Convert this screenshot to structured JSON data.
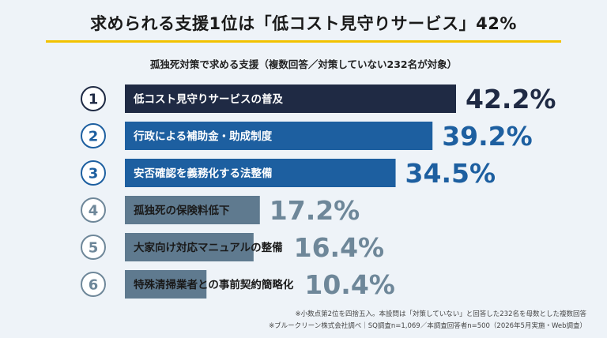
{
  "title": "求められる支援1位は「低コスト見守りサービス」42%",
  "subtitle": "孤独死対策で求める支援（複数回答／対策していない232名が対象）",
  "footnotes": [
    "※小数点第2位を四捨五入。本設問は「対策していない」と回答した232名を母数とした複数回答",
    "※ブルークリーン株式会社調べ｜SQ調査n=1,069／本調査回答者n=500（2026年5月実施・Web調査）"
  ],
  "chart_data": {
    "type": "bar",
    "orientation": "horizontal",
    "unit": "%",
    "ranks": [
      "①",
      "②",
      "③",
      "④",
      "⑤",
      "⑥"
    ],
    "categories": [
      "低コスト見守りサービスの普及",
      "行政による補助金・助成制度",
      "安否確認を義務化する法整備",
      "孤独死の保険料低下",
      "大家向け対応マニュアルの整備",
      "特殊清掃業者との事前契約簡略化"
    ],
    "values": [
      42.2,
      39.2,
      34.5,
      17.2,
      16.4,
      10.4
    ],
    "value_labels": [
      "42.2%",
      "39.2%",
      "34.5%",
      "17.2%",
      "16.4%",
      "10.4%"
    ],
    "bar_colors": [
      "#1f2a44",
      "#1d5fa0",
      "#1d5fa0",
      "#5f7a8f",
      "#5f7a8f",
      "#5f7a8f"
    ],
    "label_colors": [
      "#1f2a44",
      "#1d5fa0",
      "#1d5fa0",
      "#6e8799",
      "#6e8799",
      "#6e8799"
    ],
    "legend": "none",
    "grid": false
  }
}
